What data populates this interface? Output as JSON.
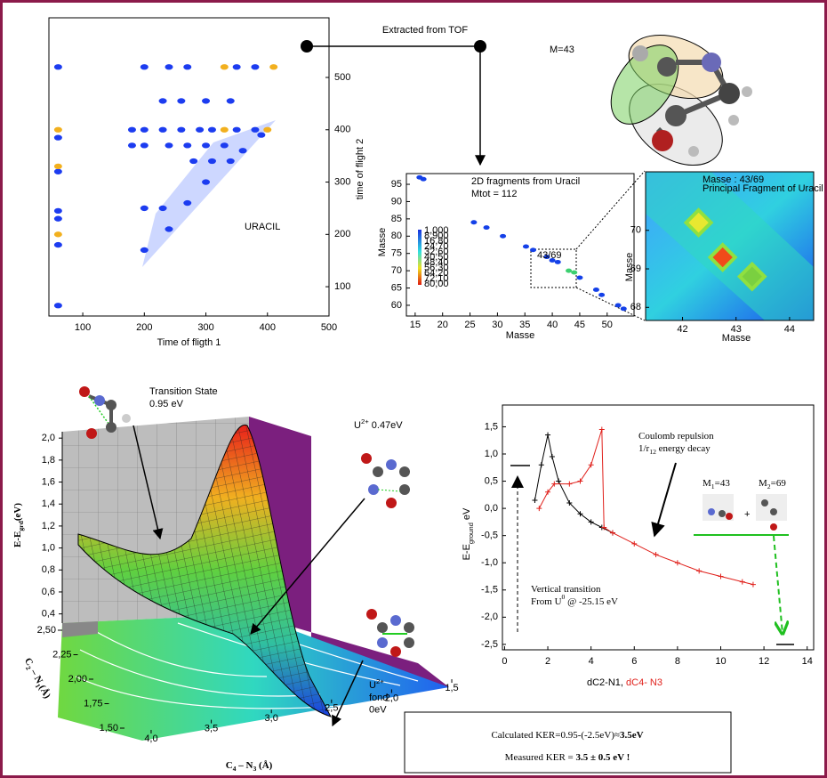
{
  "chart_data": [
    {
      "type": "scatter",
      "xlabel": "Time of fligth 1",
      "ylabel": "time of flight 2",
      "annotation": "URACIL",
      "xlim": [
        45,
        500
      ],
      "xticks": [
        100,
        200,
        300,
        400,
        500
      ],
      "ylim": [
        44,
        614
      ],
      "yticks": [
        100,
        200,
        300,
        400,
        500
      ],
      "series": [
        {
          "color": "#1c3cf0",
          "x": [
            60,
            60,
            60,
            60,
            60,
            60,
            60,
            200,
            240,
            270,
            350,
            380,
            230,
            260,
            300,
            340,
            180,
            200,
            230,
            260,
            290,
            310,
            350,
            380,
            180,
            200,
            240,
            270,
            300,
            330,
            280,
            310,
            340,
            200,
            230,
            200,
            240,
            270,
            300,
            360,
            390
          ],
          "values": [
            520,
            385,
            320,
            245,
            230,
            180,
            64,
            520,
            520,
            520,
            520,
            520,
            455,
            455,
            455,
            455,
            400,
            400,
            400,
            400,
            400,
            400,
            400,
            400,
            370,
            370,
            370,
            370,
            370,
            370,
            340,
            340,
            340,
            250,
            250,
            170,
            210,
            260,
            300,
            360,
            390
          ]
        },
        {
          "color": "#f2b01e",
          "x": [
            60,
            60,
            330,
            410,
            330,
            400,
            60
          ],
          "values": [
            400,
            330,
            520,
            520,
            400,
            400,
            200
          ]
        }
      ]
    },
    {
      "type": "scatter",
      "title": "2D fragments from Uracil",
      "subtitle": "Mtot = 112",
      "annotation": "43/69",
      "xlabel": "Masse",
      "ylabel": "Masse",
      "xlim": [
        13.4,
        54.9
      ],
      "xticks": [
        15,
        20,
        25,
        30,
        35,
        40,
        45,
        50
      ],
      "ylim": [
        56.9,
        98.1
      ],
      "yticks": [
        60,
        65,
        70,
        75,
        80,
        85,
        90,
        95
      ],
      "colorbar_labels": [
        "1,000",
        "8,900",
        "16,80",
        "24,70",
        "32,60",
        "40,50",
        "48,40",
        "56,30",
        "64,20",
        "72,10",
        "80,00"
      ],
      "series": [
        {
          "color": "#1440e8",
          "x": [
            15.8,
            16.5,
            25.7,
            28,
            31,
            35.2,
            36.5,
            39,
            40,
            41,
            45,
            48,
            49,
            52,
            53
          ],
          "values": [
            97,
            96.5,
            84,
            82.5,
            80,
            77,
            76,
            74,
            73,
            72.5,
            68,
            64.5,
            63,
            60,
            59
          ]
        },
        {
          "color": "#3cd070",
          "x": [
            43,
            44
          ],
          "values": [
            70,
            69.5
          ]
        }
      ]
    },
    {
      "type": "scatter",
      "title": "Masse : 43/69",
      "subtitle": "Principal Fragment of Uracil",
      "xlabel": "Masse",
      "ylabel": "Masse",
      "xlim": [
        41.31,
        44.45
      ],
      "xticks": [
        42,
        43,
        44
      ],
      "ylim": [
        67.66,
        71.52
      ],
      "yticks": [
        68,
        69,
        70
      ],
      "x": [
        42.3,
        42.75,
        43.3
      ],
      "values": [
        70.2,
        69.3,
        68.8
      ],
      "colors": [
        "#e8e830",
        "#f04a1a",
        "#7ad040"
      ]
    },
    {
      "type": "line",
      "ylabel": [
        "E-E",
        "ground",
        " eV"
      ],
      "xlabel": [
        "dC2-N1, ",
        "dC4- N3"
      ],
      "xlim": [
        -0.1,
        14.3
      ],
      "xticks": [
        0,
        2,
        4,
        6,
        8,
        10,
        12,
        14
      ],
      "ylim": [
        -2.6,
        1.9
      ],
      "yticks": [
        {
          "value": 1.5,
          "label": "1,5"
        },
        {
          "value": 1.0,
          "label": "1,0"
        },
        {
          "value": 0.5,
          "label": "0,5"
        },
        {
          "value": 0.0,
          "label": "0,0"
        },
        {
          "value": -0.5,
          "label": "-0,5"
        },
        {
          "value": -1.0,
          "label": "-1,0"
        },
        {
          "value": -1.5,
          "label": "-1,5"
        },
        {
          "value": -2.0,
          "label": "-2,0"
        },
        {
          "value": -2.5,
          "label": "-2,5"
        }
      ],
      "annotations": {
        "coulomb": [
          "Coulomb repulsion",
          "1/r",
          "12",
          " energy decay"
        ],
        "vertical": [
          "Vertical transition",
          "From U",
          "0",
          " @ -25.15 eV"
        ],
        "m1": [
          "M",
          "1",
          "=43"
        ],
        "m2": [
          "M",
          "2",
          "=69"
        ]
      },
      "series": [
        {
          "color": "#000000",
          "x": [
            1.4,
            1.7,
            2.0,
            2.2,
            2.5,
            3.0,
            3.5,
            4.0,
            4.5,
            5.0
          ],
          "values": [
            0.15,
            0.8,
            1.35,
            0.95,
            0.5,
            0.1,
            -0.1,
            -0.25,
            -0.35,
            -0.45
          ]
        },
        {
          "color": "#e0201b",
          "x": [
            1.6,
            2.0,
            2.3,
            3.0,
            3.5,
            4.0,
            4.5,
            4.6,
            5.0,
            6.0,
            7.0,
            8.0,
            9.0,
            10.0,
            11.0,
            11.5
          ],
          "values": [
            0.0,
            0.3,
            0.45,
            0.45,
            0.5,
            0.8,
            1.45,
            -0.35,
            -0.45,
            -0.65,
            -0.85,
            -1.0,
            -1.15,
            -1.25,
            -1.35,
            -1.4
          ]
        }
      ]
    },
    {
      "type": "surface",
      "zlabel": [
        "E-E",
        "grd",
        "(eV)"
      ],
      "ylabel": [
        "C",
        "2",
        " – N",
        "1",
        "(Å)"
      ],
      "xlabel": [
        "C",
        "4",
        " – N",
        "3",
        " (Å)"
      ],
      "zlim": [
        0.3,
        2.05
      ],
      "zticks": [
        {
          "value": 2.0,
          "label": "2,0"
        },
        {
          "value": 1.8,
          "label": "1,8"
        },
        {
          "value": 1.6,
          "label": "1,6"
        },
        {
          "value": 1.4,
          "label": "1,4"
        },
        {
          "value": 1.2,
          "label": "1,2"
        },
        {
          "value": 1.0,
          "label": "1,0"
        },
        {
          "value": 0.8,
          "label": "0,8"
        },
        {
          "value": 0.6,
          "label": "0,6"
        },
        {
          "value": 0.4,
          "label": "0,4"
        }
      ],
      "ylim": [
        1.45,
        2.55
      ],
      "yticks": [
        {
          "value": 2.5,
          "label": "2,50"
        },
        {
          "value": 2.25,
          "label": "2,25"
        },
        {
          "value": 2.0,
          "label": "2,00"
        },
        {
          "value": 1.75,
          "label": "1,75"
        },
        {
          "value": 1.5,
          "label": "1,50"
        }
      ],
      "xlim": [
        1.45,
        4.05
      ],
      "xticks": [
        {
          "value": 4.0,
          "label": "4,0"
        },
        {
          "value": 3.5,
          "label": "3,5"
        },
        {
          "value": 3.0,
          "label": "3,0"
        },
        {
          "value": 2.5,
          "label": "2,5"
        },
        {
          "value": 2.0,
          "label": "2,0"
        },
        {
          "value": 1.5,
          "label": "1,5"
        }
      ]
    }
  ],
  "texts": {
    "arrow_label": "Extracted from TOF",
    "molecule_label": "M=43",
    "transition_state": [
      "Transition State",
      "0.95 eV"
    ],
    "u_047": [
      "U",
      "2+",
      "  0.47eV"
    ],
    "u_fond": [
      "U",
      "2+",
      "fond",
      "0eV"
    ],
    "ker": {
      "line1": [
        "Calculated KER=0.95-(-2.5eV)≈",
        "3.5eV"
      ],
      "line2": [
        "Measured KER = ",
        "3.5 ± 0.5 eV !"
      ]
    }
  }
}
